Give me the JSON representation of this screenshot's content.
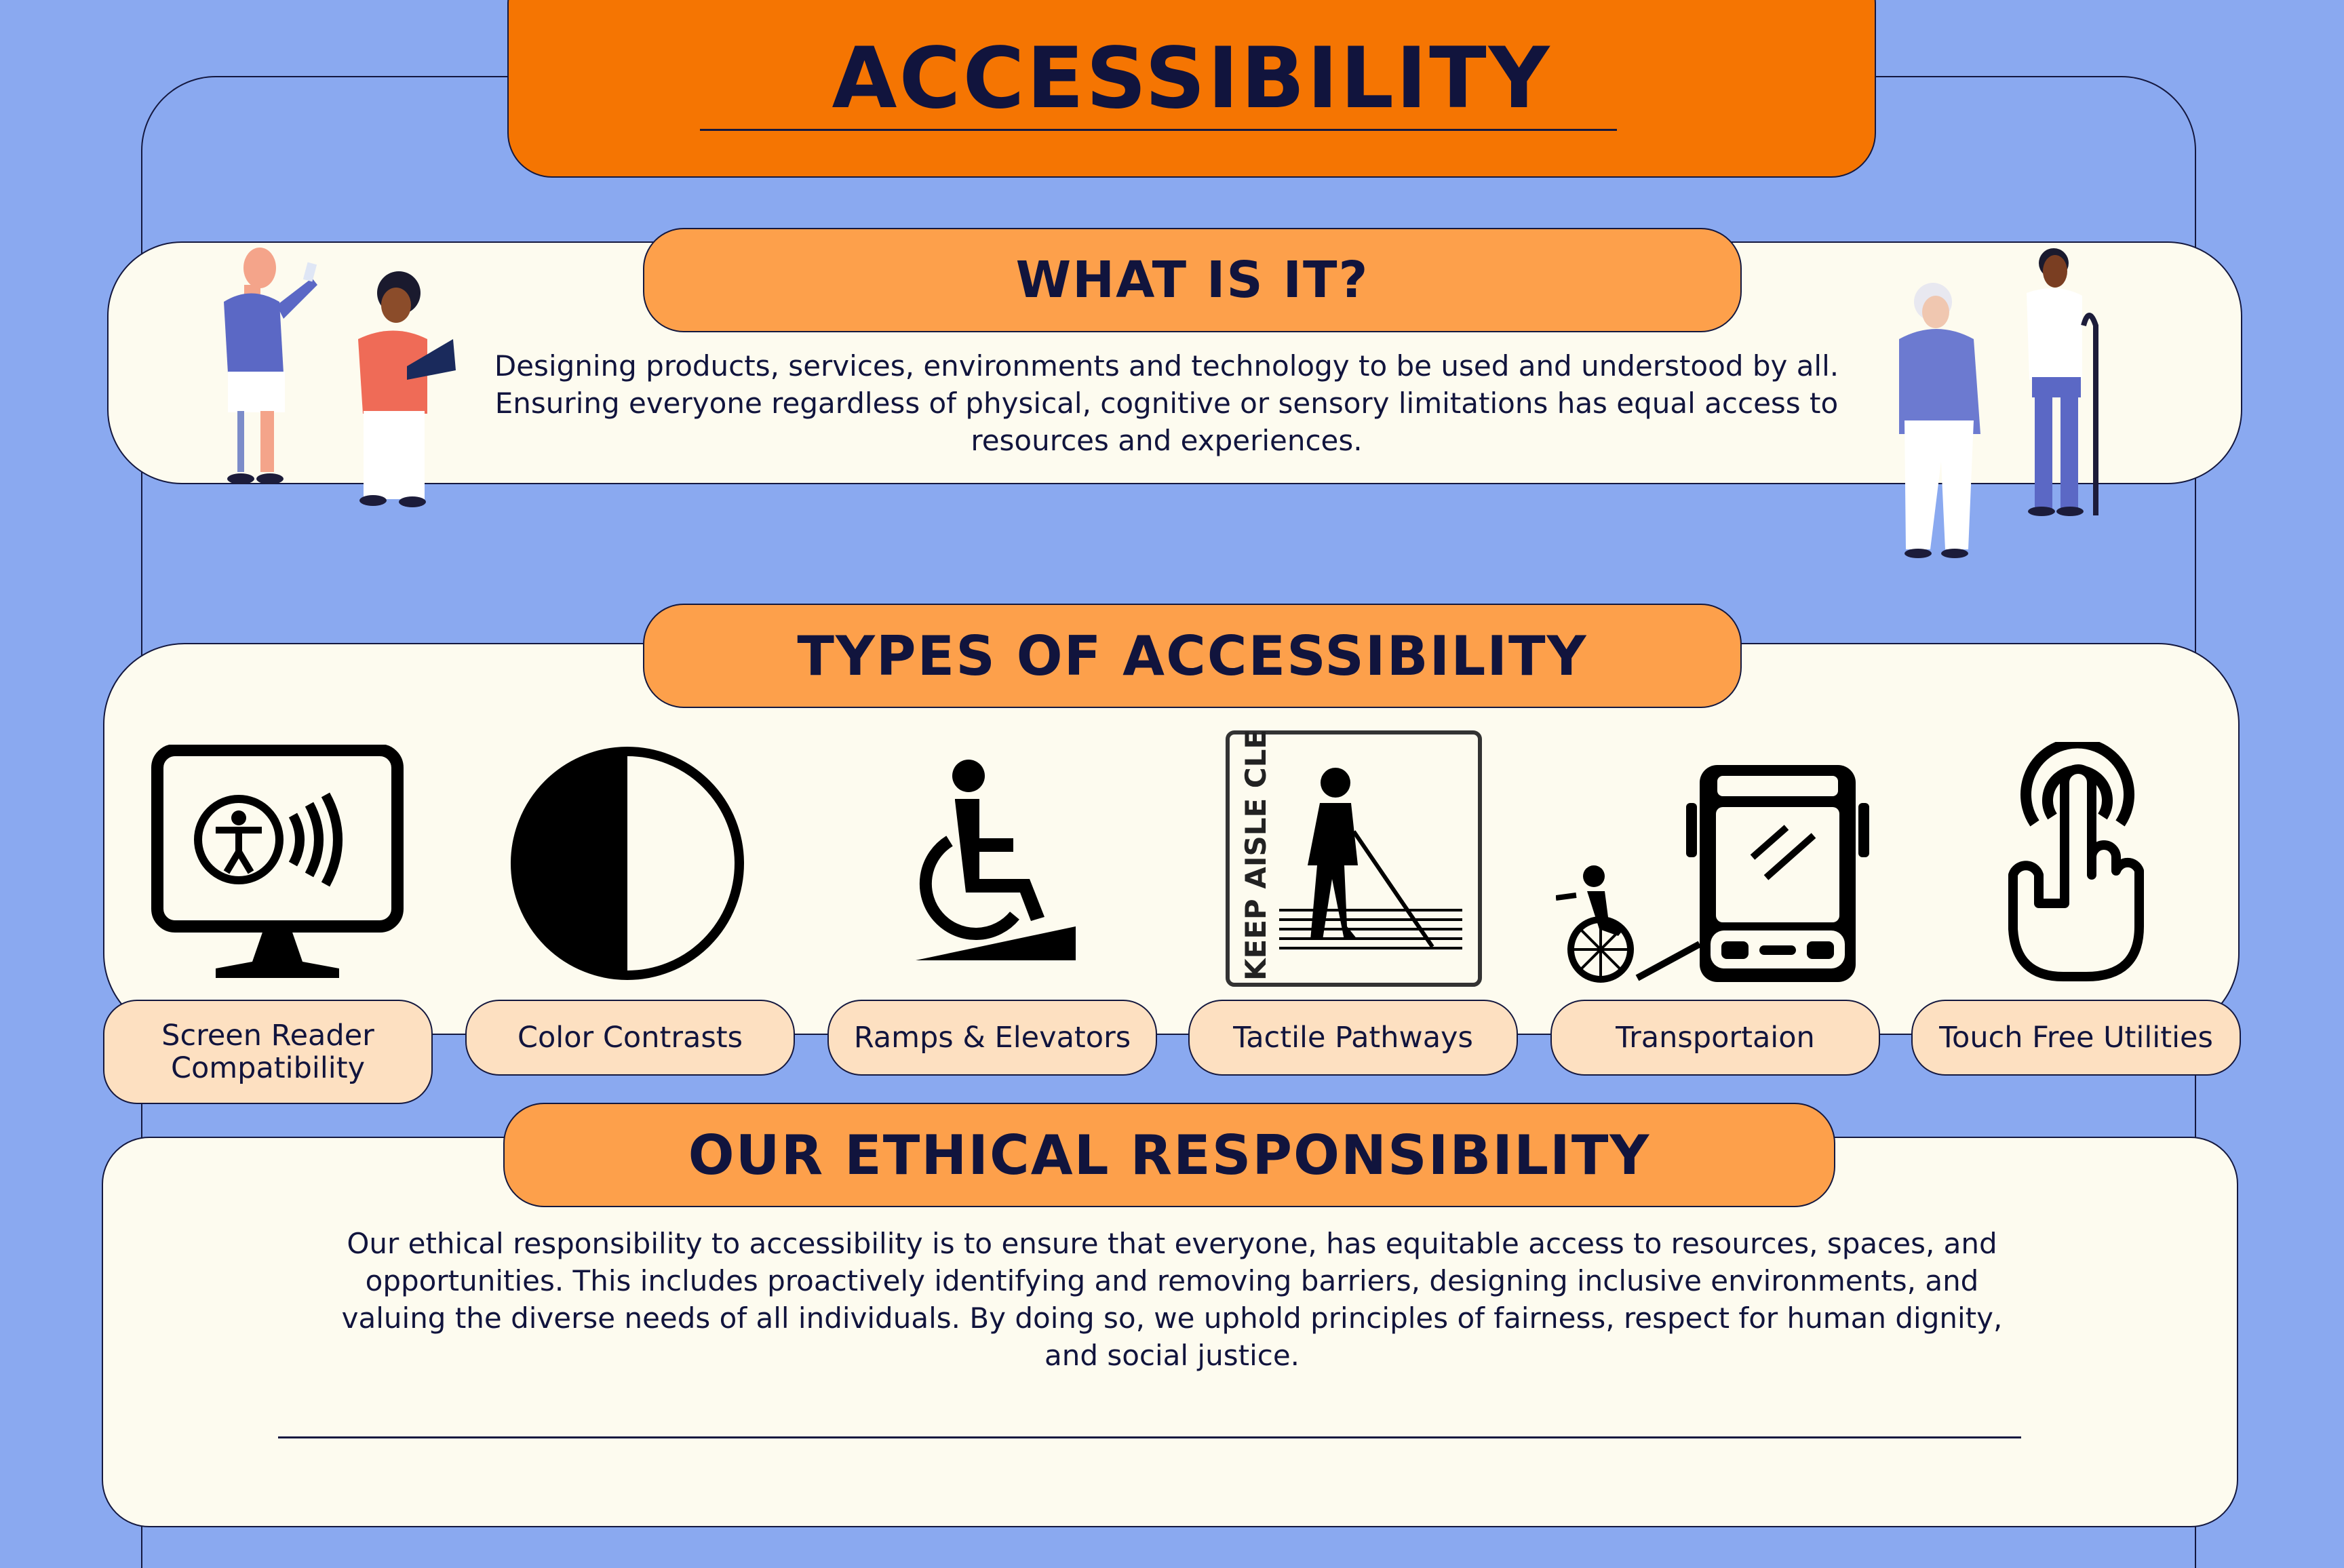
{
  "title": "ACCESSIBILITY",
  "what_is_it": {
    "heading": "WHAT IS IT?",
    "text": "Designing products, services, environments and technology to be used and understood by all. Ensuring everyone regardless of physical, cognitive or sensory limitations has equal access to resources and experiences."
  },
  "types": {
    "heading": "TYPES OF ACCESSIBILITY",
    "items": [
      {
        "label": "Screen Reader Compatibility",
        "icon": "screen-reader-icon"
      },
      {
        "label": "Color Contrasts",
        "icon": "contrast-icon"
      },
      {
        "label": "Ramps & Elevators",
        "icon": "wheelchair-ramp-icon"
      },
      {
        "label": "Tactile Pathways",
        "icon": "tactile-pathway-sign-icon",
        "sign_text": "KEEP AISLE CLEAR"
      },
      {
        "label": "Transportaion",
        "icon": "accessible-bus-icon"
      },
      {
        "label": "Touch Free Utilities",
        "icon": "touch-free-icon"
      }
    ]
  },
  "ethics": {
    "heading": "OUR ETHICAL RESPONSIBILITY",
    "text": "Our ethical responsibility to accessibility is to ensure that everyone, has equitable access to resources, spaces, and opportunities. This includes proactively identifying and removing barriers, designing inclusive environments, and valuing the diverse needs of all individuals. By doing so, we uphold principles of fairness, respect for human dignity, and social justice."
  },
  "colors": {
    "background": "#8aa9f0",
    "title_orange": "#f57502",
    "heading_orange": "#fda04b",
    "panel": "#fdfbef",
    "label": "#fde0c1",
    "ink": "#11143d"
  }
}
